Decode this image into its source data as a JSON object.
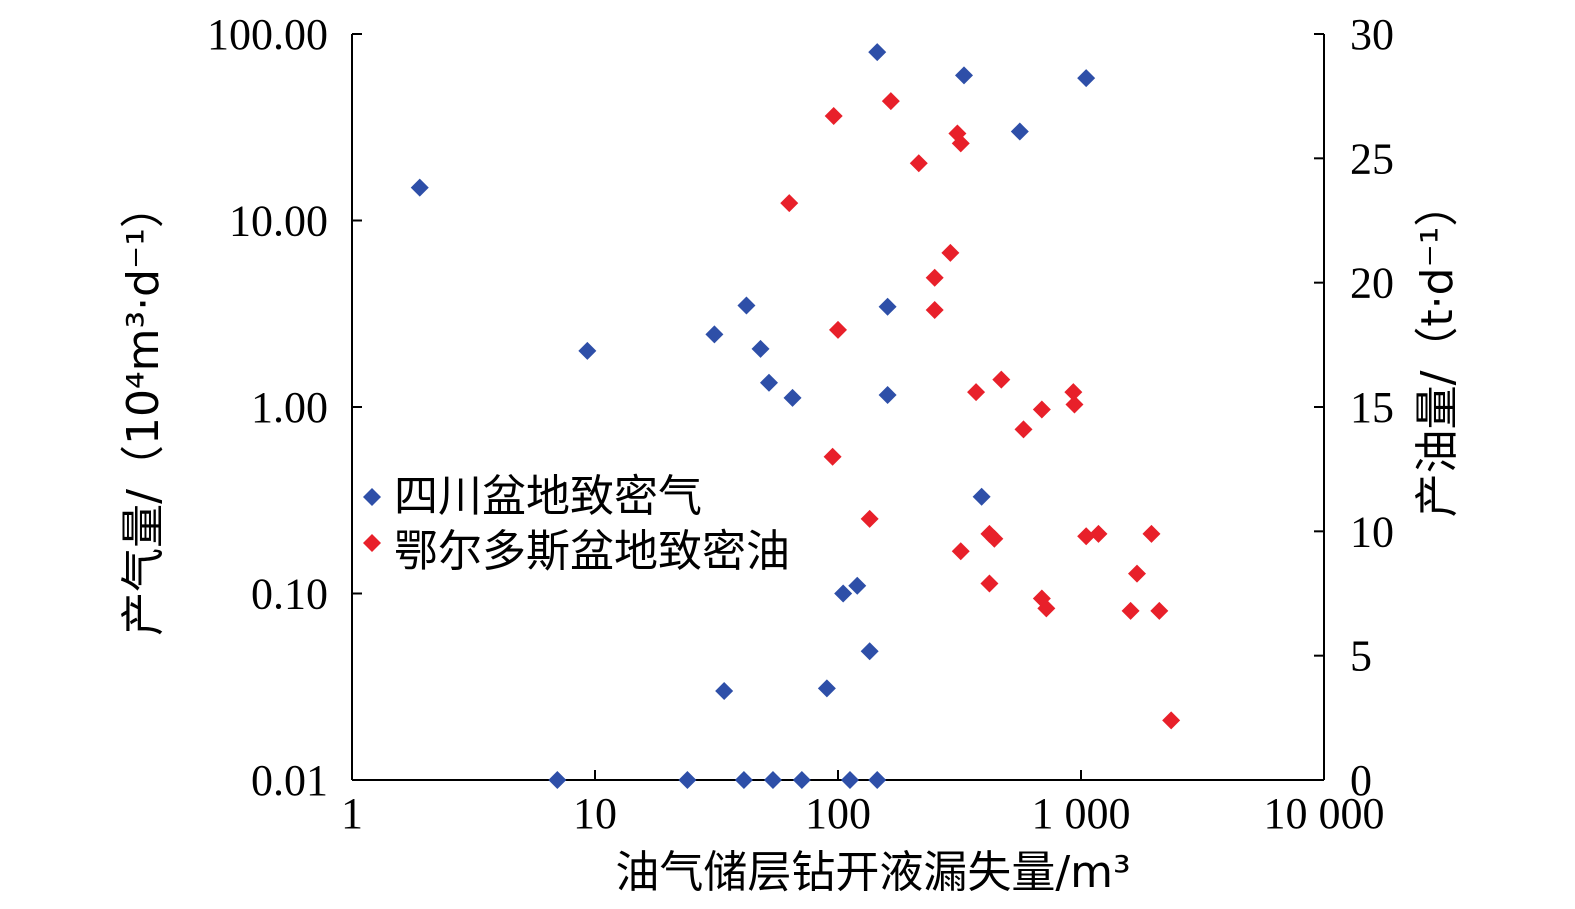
{
  "chart_data": {
    "type": "scatter",
    "x_axis": {
      "label": "油气储层钻开液漏失量/m³",
      "scale": "log",
      "range": [
        1,
        10000
      ],
      "ticks": [
        {
          "value": 1,
          "label": "1"
        },
        {
          "value": 10,
          "label": "10"
        },
        {
          "value": 100,
          "label": "100"
        },
        {
          "value": 1000,
          "label": "1 000"
        },
        {
          "value": 10000,
          "label": "10 000"
        }
      ]
    },
    "y_axis_left": {
      "label": "产气量/（10⁴m³·d⁻¹）",
      "scale": "log",
      "range": [
        0.01,
        100
      ],
      "ticks": [
        {
          "value": 0.01,
          "label": "0.01"
        },
        {
          "value": 0.1,
          "label": "0.10"
        },
        {
          "value": 1,
          "label": "1.00"
        },
        {
          "value": 10,
          "label": "10.00"
        },
        {
          "value": 100,
          "label": "100.00"
        }
      ]
    },
    "y_axis_right": {
      "label": "产油量/（t·d⁻¹）",
      "scale": "linear",
      "range": [
        0,
        30
      ],
      "ticks": [
        {
          "value": 0,
          "label": "0"
        },
        {
          "value": 5,
          "label": "5"
        },
        {
          "value": 10,
          "label": "10"
        },
        {
          "value": 15,
          "label": "15"
        },
        {
          "value": 20,
          "label": "20"
        },
        {
          "value": 25,
          "label": "25"
        },
        {
          "value": 30,
          "label": "30"
        }
      ]
    },
    "legend": {
      "position": "middle-left"
    },
    "series": [
      {
        "name": "四川盆地致密气",
        "color": "#2e4fa8",
        "axis": "left",
        "marker": "diamond",
        "points": [
          [
            1.9,
            15
          ],
          [
            9.3,
            2.0
          ],
          [
            31,
            2.45
          ],
          [
            42,
            3.5
          ],
          [
            48,
            2.05
          ],
          [
            52,
            1.35
          ],
          [
            65,
            1.12
          ],
          [
            160,
            3.45
          ],
          [
            160,
            1.16
          ],
          [
            145,
            80
          ],
          [
            330,
            60
          ],
          [
            560,
            30
          ],
          [
            1050,
            58
          ],
          [
            390,
            0.33
          ],
          [
            120,
            0.11
          ],
          [
            105,
            0.1
          ],
          [
            135,
            0.049
          ],
          [
            90,
            0.031
          ],
          [
            34,
            0.03
          ],
          [
            7,
            0.01
          ],
          [
            24,
            0.01
          ],
          [
            41,
            0.01
          ],
          [
            54,
            0.01
          ],
          [
            71,
            0.01
          ],
          [
            112,
            0.01
          ],
          [
            145,
            0.01
          ]
        ]
      },
      {
        "name": "鄂尔多斯盆地致密油",
        "color": "#e8202a",
        "axis": "right",
        "marker": "diamond",
        "points": [
          [
            96,
            26.7
          ],
          [
            165,
            27.3
          ],
          [
            310,
            26.0
          ],
          [
            320,
            25.6
          ],
          [
            215,
            24.8
          ],
          [
            63,
            23.2
          ],
          [
            290,
            21.2
          ],
          [
            250,
            20.2
          ],
          [
            250,
            18.9
          ],
          [
            100,
            18.1
          ],
          [
            370,
            15.6
          ],
          [
            470,
            16.1
          ],
          [
            930,
            15.6
          ],
          [
            940,
            15.1
          ],
          [
            690,
            14.9
          ],
          [
            580,
            14.1
          ],
          [
            95,
            13.0
          ],
          [
            135,
            10.5
          ],
          [
            420,
            9.9
          ],
          [
            440,
            9.7
          ],
          [
            320,
            9.2
          ],
          [
            1050,
            9.8
          ],
          [
            1180,
            9.9
          ],
          [
            1950,
            9.9
          ],
          [
            1700,
            8.3
          ],
          [
            420,
            7.9
          ],
          [
            690,
            7.3
          ],
          [
            720,
            6.9
          ],
          [
            1600,
            6.8
          ],
          [
            2100,
            6.8
          ],
          [
            2350,
            2.4
          ]
        ]
      }
    ]
  }
}
